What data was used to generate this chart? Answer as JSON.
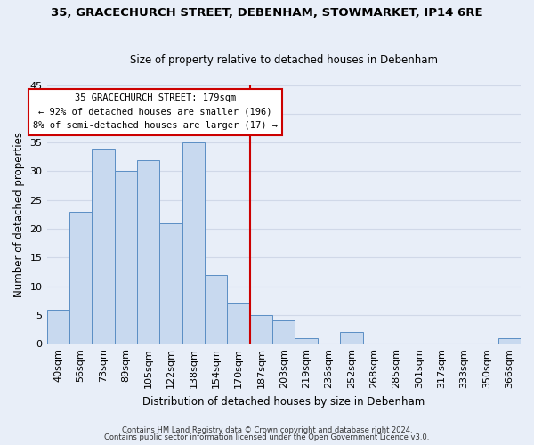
{
  "title": "35, GRACECHURCH STREET, DEBENHAM, STOWMARKET, IP14 6RE",
  "subtitle": "Size of property relative to detached houses in Debenham",
  "xlabel": "Distribution of detached houses by size in Debenham",
  "ylabel": "Number of detached properties",
  "bar_labels": [
    "40sqm",
    "56sqm",
    "73sqm",
    "89sqm",
    "105sqm",
    "122sqm",
    "138sqm",
    "154sqm",
    "170sqm",
    "187sqm",
    "203sqm",
    "219sqm",
    "236sqm",
    "252sqm",
    "268sqm",
    "285sqm",
    "301sqm",
    "317sqm",
    "333sqm",
    "350sqm",
    "366sqm"
  ],
  "bar_values": [
    6,
    23,
    34,
    30,
    32,
    21,
    35,
    12,
    7,
    5,
    4,
    1,
    0,
    2,
    0,
    0,
    0,
    0,
    0,
    0,
    1
  ],
  "bar_color": "#c8d9ef",
  "bar_edge_color": "#5b8ec4",
  "vline_x": 8.5,
  "vline_color": "#cc0000",
  "ylim": [
    0,
    45
  ],
  "yticks": [
    0,
    5,
    10,
    15,
    20,
    25,
    30,
    35,
    40,
    45
  ],
  "annotation_title": "35 GRACECHURCH STREET: 179sqm",
  "annotation_line1": "← 92% of detached houses are smaller (196)",
  "annotation_line2": "8% of semi-detached houses are larger (17) →",
  "annotation_box_color": "#ffffff",
  "annotation_box_edge": "#cc0000",
  "footnote1": "Contains HM Land Registry data © Crown copyright and database right 2024.",
  "footnote2": "Contains public sector information licensed under the Open Government Licence v3.0.",
  "grid_color": "#d0d8e8",
  "background_color": "#e8eef8"
}
